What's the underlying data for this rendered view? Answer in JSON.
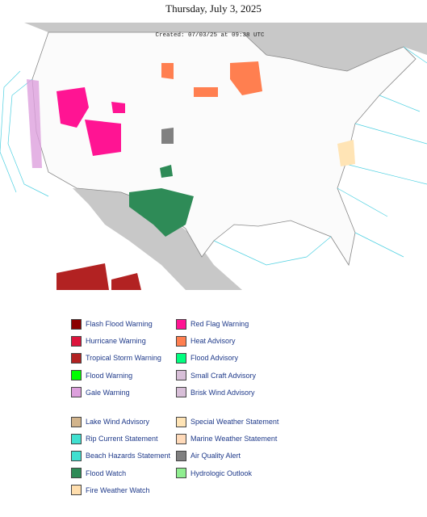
{
  "header": {
    "date": "Thursday, July 3, 2025"
  },
  "map": {
    "created": "Created: 07/03/25 at 09:38 UTC"
  },
  "legend": {
    "groups": [
      {
        "columns": [
          [
            {
              "label": "Flash Flood Warning",
              "color": "#8b0000"
            },
            {
              "label": "Hurricane Warning",
              "color": "#dc143c"
            },
            {
              "label": "Tropical Storm Warning",
              "color": "#b22222"
            },
            {
              "label": "Flood Warning",
              "color": "#00ff00"
            },
            {
              "label": "Gale Warning",
              "color": "#dda0dd"
            }
          ],
          [
            {
              "label": "Red Flag Warning",
              "color": "#ff1493"
            },
            {
              "label": "Heat Advisory",
              "color": "#ff7f50"
            },
            {
              "label": "Flood Advisory",
              "color": "#00ff7f"
            },
            {
              "label": "Small Craft Advisory",
              "color": "#d8bfd8"
            },
            {
              "label": "Brisk Wind Advisory",
              "color": "#d8bfd8"
            }
          ]
        ]
      },
      {
        "columns": [
          [
            {
              "label": "Lake Wind Advisory",
              "color": "#d2b48c"
            },
            {
              "label": "Rip Current Statement",
              "color": "#40e0d0"
            },
            {
              "label": "Beach Hazards Statement",
              "color": "#40e0d0"
            },
            {
              "label": "Flood Watch",
              "color": "#2e8b57"
            },
            {
              "label": "Fire Weather Watch",
              "color": "#ffdead"
            }
          ],
          [
            {
              "label": "Special Weather Statement",
              "color": "#ffe4b5"
            },
            {
              "label": "Marine Weather Statement",
              "color": "#ffdab9"
            },
            {
              "label": "Air Quality Alert",
              "color": "#808080"
            },
            {
              "label": "Hydrologic Outlook",
              "color": "#90ee90"
            }
          ]
        ]
      }
    ]
  }
}
